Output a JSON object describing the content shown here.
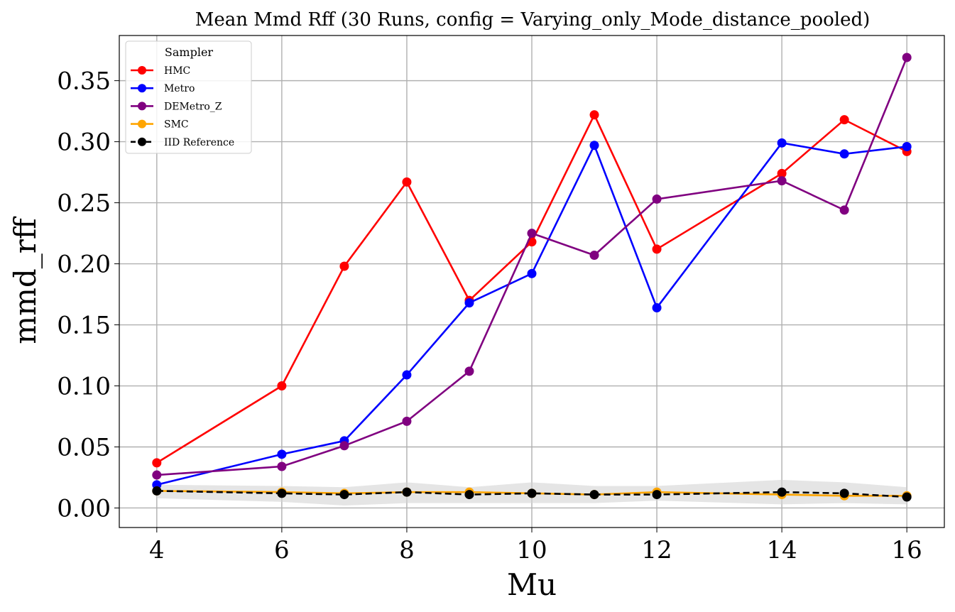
{
  "chart_data": {
    "type": "line",
    "title": "Mean Mmd Rff (30 Runs, config = Varying_only_Mode_distance_pooled)",
    "xlabel": "Mu",
    "ylabel": "mmd_rff",
    "xlim": [
      3.4,
      16.6
    ],
    "ylim": [
      -0.016,
      0.387
    ],
    "xticks": [
      4,
      6,
      8,
      10,
      12,
      14,
      16
    ],
    "yticks": [
      0.0,
      0.05,
      0.1,
      0.15,
      0.2,
      0.25,
      0.3,
      0.35
    ],
    "ytick_labels": [
      "0.00",
      "0.05",
      "0.10",
      "0.15",
      "0.20",
      "0.25",
      "0.30",
      "0.35"
    ],
    "grid": true,
    "legend": {
      "title": "Sampler",
      "placement": "top-left"
    },
    "x": [
      4,
      6,
      7,
      8,
      9,
      10,
      11,
      12,
      14,
      15,
      16
    ],
    "series": [
      {
        "name": "HMC",
        "color": "#ff0000",
        "dashed": false,
        "values": [
          0.037,
          0.1,
          0.198,
          0.267,
          0.17,
          0.218,
          0.322,
          0.212,
          0.274,
          0.318,
          0.292
        ]
      },
      {
        "name": "Metro",
        "color": "#0000ff",
        "dashed": false,
        "values": [
          0.019,
          0.044,
          0.055,
          0.109,
          0.168,
          0.192,
          0.297,
          0.164,
          0.299,
          0.29,
          0.296
        ]
      },
      {
        "name": "DEMetro_Z",
        "color": "#800080",
        "dashed": false,
        "values": [
          0.027,
          0.034,
          0.051,
          0.071,
          0.112,
          0.225,
          0.207,
          0.253,
          0.268,
          0.244,
          0.369
        ]
      },
      {
        "name": "SMC",
        "color": "#ffa500",
        "dashed": false,
        "values": [
          0.014,
          0.013,
          0.012,
          0.013,
          0.013,
          0.012,
          0.011,
          0.013,
          0.011,
          0.01,
          0.01
        ]
      },
      {
        "name": "IID Reference",
        "color": "#000000",
        "dashed": true,
        "values": [
          0.014,
          0.012,
          0.011,
          0.013,
          0.011,
          0.012,
          0.011,
          0.011,
          0.013,
          0.012,
          0.009
        ]
      }
    ],
    "band": {
      "color": "#d3d3d3",
      "upper": [
        0.019,
        0.018,
        0.017,
        0.021,
        0.017,
        0.021,
        0.018,
        0.018,
        0.023,
        0.021,
        0.017
      ],
      "lower": [
        0.008,
        0.005,
        0.002,
        0.004,
        0.004,
        0.004,
        0.004,
        0.006,
        0.003,
        0.004,
        0.003
      ]
    }
  }
}
